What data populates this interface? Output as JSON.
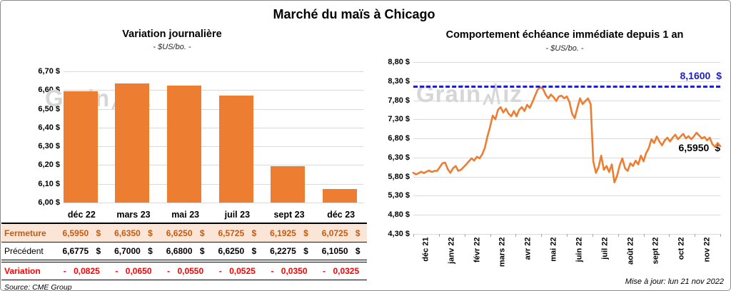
{
  "page": {
    "title": "Marché du maïs à Chicago",
    "source": "Source: CME Group",
    "updated": "Mise à jour: lun 21 nov 2022",
    "watermark": {
      "prefix": "Grain",
      "suffix": "iz",
      "full": "GrainWiz"
    }
  },
  "colors": {
    "bar_orange": "#ed7d31",
    "line_orange": "#ed7d31",
    "reference_blue": "#1f1fc8",
    "fermeture_text": "#c55a11",
    "fermeture_bg": "#fbe5d6",
    "variation_red": "#ff0000",
    "gridline": "#d9d9d9"
  },
  "chart_data": [
    {
      "type": "bar",
      "title": "Variation journalière",
      "subtitle": "- $US/bo. -",
      "categories": [
        "déc 22",
        "mars 23",
        "mai 23",
        "juil 23",
        "sept 23",
        "déc 23"
      ],
      "values": [
        6.595,
        6.635,
        6.625,
        6.5725,
        6.1925,
        6.0725
      ],
      "ylim": [
        6.0,
        6.7
      ],
      "y_ticks": [
        "6,70 $",
        "6,60 $",
        "6,50 $",
        "6,40 $",
        "6,30 $",
        "6,20 $",
        "6,10 $",
        "6,00 $"
      ],
      "grid": true,
      "legend": "none"
    },
    {
      "type": "line",
      "title": "Comportement échéance immédiate depuis 1 an",
      "subtitle": "- $US/bo. -",
      "x_ticks": [
        "déc 21",
        "janv 22",
        "févr 22",
        "mars 22",
        "avr 22",
        "mai 22",
        "juin 22",
        "juil 22",
        "août 22",
        "sept 22",
        "oct 22",
        "nov 22"
      ],
      "ylim": [
        4.3,
        8.8
      ],
      "y_ticks": [
        "8,80 $",
        "8,30 $",
        "7,80 $",
        "7,30 $",
        "6,80 $",
        "6,30 $",
        "5,80 $",
        "5,30 $",
        "4,80 $",
        "4,30 $"
      ],
      "reference_line": {
        "value": 8.16,
        "label": "8,1600 $",
        "style": "dashed"
      },
      "last_point": {
        "value": 6.595,
        "label": "6,5950 $"
      },
      "grid": true,
      "legend": "none",
      "series": [
        {
          "name": "échéance immédiate",
          "values": [
            5.9,
            5.86,
            5.89,
            5.93,
            5.89,
            5.93,
            5.96,
            5.92,
            5.95,
            5.95,
            6.05,
            6.15,
            6.17,
            6.0,
            5.9,
            6.02,
            6.08,
            5.95,
            5.98,
            6.05,
            6.12,
            6.2,
            6.28,
            6.22,
            6.32,
            6.28,
            6.38,
            6.55,
            6.85,
            7.1,
            7.4,
            7.3,
            7.55,
            7.62,
            7.48,
            7.58,
            7.45,
            7.38,
            7.52,
            7.38,
            7.55,
            7.62,
            7.52,
            7.68,
            7.6,
            7.75,
            7.92,
            8.08,
            8.14,
            8.1,
            7.95,
            7.85,
            7.95,
            7.88,
            7.78,
            7.9,
            7.92,
            7.85,
            7.9,
            7.75,
            7.45,
            7.33,
            7.6,
            7.85,
            7.7,
            7.78,
            7.85,
            7.7,
            6.2,
            5.9,
            6.05,
            6.35,
            5.98,
            6.08,
            5.92,
            6.12,
            5.65,
            5.82,
            6.1,
            6.28,
            6.02,
            5.95,
            6.15,
            6.08,
            6.22,
            6.12,
            6.35,
            6.2,
            6.42,
            6.55,
            6.78,
            6.68,
            6.85,
            6.72,
            6.62,
            6.75,
            6.82,
            6.72,
            6.82,
            6.9,
            6.78,
            6.85,
            6.92,
            6.8,
            6.86,
            6.78,
            6.85,
            6.95,
            6.88,
            6.8,
            6.84,
            6.75,
            6.82,
            6.65,
            6.58,
            6.68,
            6.595
          ]
        }
      ]
    }
  ],
  "table": {
    "columns": [
      "déc 22",
      "mars 23",
      "mai 23",
      "juil 23",
      "sept 23",
      "déc 23"
    ],
    "rows": [
      {
        "label": "Fermeture",
        "values": [
          "6,5950 $",
          "6,6350 $",
          "6,6250 $",
          "6,5725 $",
          "6,1925 $",
          "6,0725 $"
        ]
      },
      {
        "label": "Précédent",
        "values": [
          "6,6775 $",
          "6,7000 $",
          "6,6800 $",
          "6,6250 $",
          "6,2275 $",
          "6,1050 $"
        ]
      },
      {
        "label": "Variation",
        "values": [
          "- 0,0825",
          "- 0,0650",
          "- 0,0550",
          "- 0,0525",
          "- 0,0350",
          "- 0,0325"
        ]
      }
    ]
  }
}
